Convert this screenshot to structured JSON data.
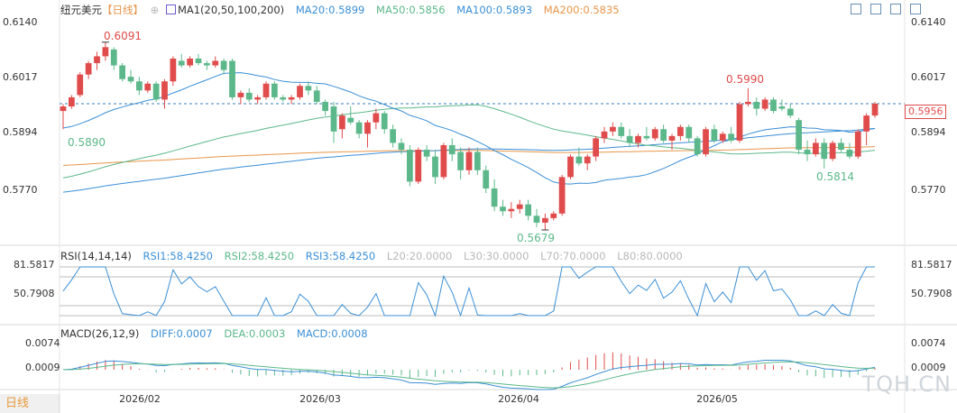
{
  "header": {
    "symbol": "纽元美元",
    "period_tag": "【日线】",
    "ma_label": "MA1(20,50,100,200)",
    "ma20": "MA20:0.5899",
    "ma50": "MA50:0.5856",
    "ma100": "MA100:0.5893",
    "ma200": "MA200:0.5835",
    "toolbar_icons": [
      "expand-icon",
      "collapse-icon",
      "maximize-icon",
      "settings-icon"
    ]
  },
  "axes": {
    "price_ticks": [
      "0.6140",
      "0.6017",
      "0.5894",
      "0.5770"
    ],
    "rsi_ticks": [
      "81.5817",
      "50.7908"
    ],
    "macd_ticks": [
      "0.0074",
      "0.0009"
    ],
    "x_ticks": [
      "2026/02",
      "2026/03",
      "2026/04",
      "2026/05"
    ]
  },
  "annotations": {
    "high1": "0.6091",
    "high2": "0.5990",
    "low1": "0.5679",
    "low2": "0.5814",
    "left_ma": "0.5890",
    "last_price": "0.5956"
  },
  "rsi_legend": {
    "label": "RSI(14,14,14)",
    "rsi1": "RSI1:58.4250",
    "rsi2": "RSI2:58.4250",
    "rsi3": "RSI3:58.4250",
    "l20": "L20:20.0000",
    "l30": "L30:30.0000",
    "l70": "L70:70.0000",
    "l80": "L80:80.0000"
  },
  "macd_legend": {
    "label": "MACD(26,12,9)",
    "diff": "DIFF:0.0007",
    "dea": "DEA:0.0003",
    "macd": "MACD:0.0008"
  },
  "footer": {
    "period_button": "日线",
    "watermark": "TQH.CN"
  },
  "colors": {
    "up": "#e04b4b",
    "down": "#5cb88a",
    "ma20": "#3b8fd6",
    "ma50": "#5cb88a",
    "ma100": "#3b8fd6",
    "ma200": "#e8964a"
  },
  "chart_data": {
    "type": "candlestick",
    "title": "纽元美元 日线",
    "ylim": [
      0.57,
      0.614
    ],
    "x_ticks": [
      "2026/02",
      "2026/03",
      "2026/04",
      "2026/05"
    ],
    "last_price": 0.5956,
    "candles": [
      [
        0.594,
        0.5955,
        0.59,
        0.595
      ],
      [
        0.595,
        0.5975,
        0.5945,
        0.597
      ],
      [
        0.5975,
        0.6025,
        0.597,
        0.602
      ],
      [
        0.602,
        0.605,
        0.601,
        0.6045
      ],
      [
        0.6045,
        0.607,
        0.603,
        0.606
      ],
      [
        0.606,
        0.6091,
        0.605,
        0.608
      ],
      [
        0.6075,
        0.608,
        0.603,
        0.604
      ],
      [
        0.604,
        0.6045,
        0.6005,
        0.601
      ],
      [
        0.6015,
        0.603,
        0.6,
        0.6005
      ],
      [
        0.6005,
        0.6015,
        0.5975,
        0.5985
      ],
      [
        0.5985,
        0.6005,
        0.598,
        0.6
      ],
      [
        0.6,
        0.6005,
        0.596,
        0.5965
      ],
      [
        0.5965,
        0.601,
        0.5945,
        0.6005
      ],
      [
        0.6005,
        0.606,
        0.5995,
        0.6055
      ],
      [
        0.605,
        0.6065,
        0.6035,
        0.604
      ],
      [
        0.604,
        0.606,
        0.6035,
        0.6055
      ],
      [
        0.6055,
        0.6065,
        0.604,
        0.6045
      ],
      [
        0.6045,
        0.605,
        0.603,
        0.604
      ],
      [
        0.604,
        0.606,
        0.6035,
        0.605
      ],
      [
        0.605,
        0.6055,
        0.602,
        0.603
      ],
      [
        0.605,
        0.6055,
        0.5965,
        0.597
      ],
      [
        0.597,
        0.5985,
        0.5955,
        0.598
      ],
      [
        0.598,
        0.599,
        0.596,
        0.5965
      ],
      [
        0.5965,
        0.5975,
        0.5955,
        0.597
      ],
      [
        0.597,
        0.6005,
        0.5965,
        0.6
      ],
      [
        0.6,
        0.6005,
        0.5965,
        0.597
      ],
      [
        0.597,
        0.5975,
        0.596,
        0.5965
      ],
      [
        0.5965,
        0.5975,
        0.5955,
        0.597
      ],
      [
        0.597,
        0.6,
        0.5965,
        0.5995
      ],
      [
        0.5995,
        0.6005,
        0.5975,
        0.5985
      ],
      [
        0.5985,
        0.5995,
        0.5955,
        0.596
      ],
      [
        0.596,
        0.5965,
        0.593,
        0.594
      ],
      [
        0.595,
        0.596,
        0.587,
        0.5895
      ],
      [
        0.59,
        0.5935,
        0.588,
        0.593
      ],
      [
        0.5925,
        0.595,
        0.591,
        0.5915
      ],
      [
        0.5915,
        0.592,
        0.588,
        0.589
      ],
      [
        0.589,
        0.592,
        0.586,
        0.5915
      ],
      [
        0.5915,
        0.5945,
        0.59,
        0.5935
      ],
      [
        0.5935,
        0.594,
        0.589,
        0.59
      ],
      [
        0.59,
        0.591,
        0.586,
        0.587
      ],
      [
        0.587,
        0.588,
        0.5845,
        0.5855
      ],
      [
        0.5855,
        0.5865,
        0.5775,
        0.5785
      ],
      [
        0.5785,
        0.586,
        0.578,
        0.5855
      ],
      [
        0.5855,
        0.5865,
        0.583,
        0.584
      ],
      [
        0.584,
        0.5855,
        0.578,
        0.5795
      ],
      [
        0.5795,
        0.587,
        0.579,
        0.5865
      ],
      [
        0.5865,
        0.588,
        0.583,
        0.5845
      ],
      [
        0.585,
        0.586,
        0.579,
        0.581
      ],
      [
        0.581,
        0.586,
        0.58,
        0.585
      ],
      [
        0.585,
        0.586,
        0.58,
        0.581
      ],
      [
        0.581,
        0.582,
        0.576,
        0.577
      ],
      [
        0.577,
        0.579,
        0.572,
        0.573
      ],
      [
        0.573,
        0.5745,
        0.571,
        0.572
      ],
      [
        0.572,
        0.574,
        0.5705,
        0.5725
      ],
      [
        0.5725,
        0.5745,
        0.5715,
        0.5735
      ],
      [
        0.5735,
        0.5745,
        0.57,
        0.571
      ],
      [
        0.571,
        0.5725,
        0.5685,
        0.5695
      ],
      [
        0.5695,
        0.5715,
        0.5679,
        0.5705
      ],
      [
        0.5705,
        0.572,
        0.57,
        0.5715
      ],
      [
        0.5715,
        0.58,
        0.571,
        0.5795
      ],
      [
        0.5795,
        0.5845,
        0.579,
        0.584
      ],
      [
        0.584,
        0.586,
        0.582,
        0.5825
      ],
      [
        0.5825,
        0.5845,
        0.581,
        0.584
      ],
      [
        0.584,
        0.5885,
        0.583,
        0.588
      ],
      [
        0.588,
        0.5905,
        0.587,
        0.5895
      ],
      [
        0.5895,
        0.5915,
        0.5885,
        0.5905
      ],
      [
        0.5905,
        0.5915,
        0.588,
        0.5885
      ],
      [
        0.5885,
        0.59,
        0.586,
        0.587
      ],
      [
        0.587,
        0.589,
        0.586,
        0.5885
      ],
      [
        0.5885,
        0.5905,
        0.5875,
        0.588
      ],
      [
        0.588,
        0.5905,
        0.5875,
        0.59
      ],
      [
        0.59,
        0.591,
        0.587,
        0.5875
      ],
      [
        0.5875,
        0.589,
        0.5855,
        0.5885
      ],
      [
        0.5885,
        0.591,
        0.5875,
        0.5905
      ],
      [
        0.5905,
        0.591,
        0.587,
        0.588
      ],
      [
        0.588,
        0.5885,
        0.584,
        0.5845
      ],
      [
        0.5845,
        0.5905,
        0.584,
        0.59
      ],
      [
        0.59,
        0.591,
        0.587,
        0.5875
      ],
      [
        0.5875,
        0.5895,
        0.587,
        0.589
      ],
      [
        0.589,
        0.5905,
        0.587,
        0.5875
      ],
      [
        0.5875,
        0.596,
        0.587,
        0.5955
      ],
      [
        0.5955,
        0.599,
        0.595,
        0.596
      ],
      [
        0.596,
        0.597,
        0.593,
        0.5945
      ],
      [
        0.5945,
        0.597,
        0.594,
        0.5965
      ],
      [
        0.5965,
        0.597,
        0.5935,
        0.594
      ],
      [
        0.595,
        0.5965,
        0.594,
        0.5945
      ],
      [
        0.5945,
        0.5955,
        0.5925,
        0.593
      ],
      [
        0.592,
        0.5925,
        0.5845,
        0.5855
      ],
      [
        0.5855,
        0.5875,
        0.583,
        0.5845
      ],
      [
        0.5845,
        0.588,
        0.584,
        0.587
      ],
      [
        0.587,
        0.588,
        0.5814,
        0.5835
      ],
      [
        0.5835,
        0.5875,
        0.583,
        0.587
      ],
      [
        0.587,
        0.588,
        0.585,
        0.5855
      ],
      [
        0.5855,
        0.587,
        0.5835,
        0.584
      ],
      [
        0.584,
        0.59,
        0.5835,
        0.5895
      ],
      [
        0.5895,
        0.5935,
        0.5865,
        0.593
      ],
      [
        0.593,
        0.596,
        0.5925,
        0.5956
      ]
    ]
  }
}
